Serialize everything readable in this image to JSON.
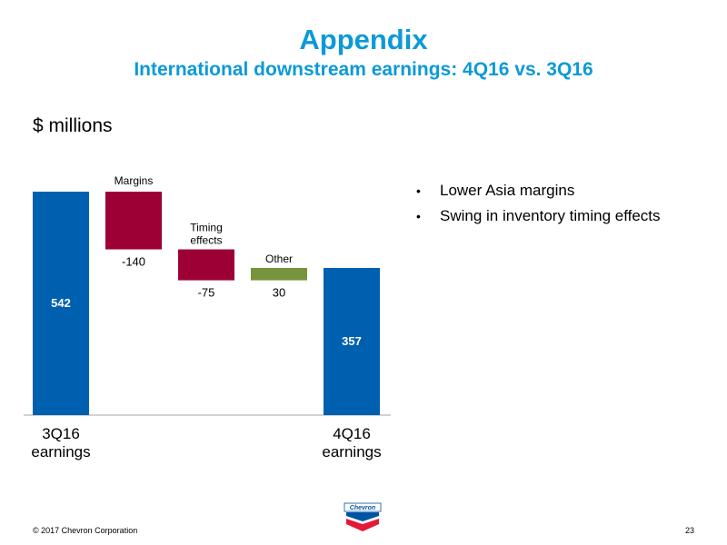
{
  "header": {
    "title": "Appendix",
    "subtitle": "International downstream earnings: 4Q16 vs. 3Q16"
  },
  "unit_label": "$ millions",
  "bullets": [
    "Lower Asia margins",
    "Swing in inventory timing effects"
  ],
  "footer": {
    "copyright": "© 2017 Chevron Corporation",
    "page_number": "23"
  },
  "logo": {
    "wordmark": "Chevron",
    "icon": "chevron-logo-icon"
  },
  "colors": {
    "title": "#0b9ad6",
    "total_bar": "#0060b0",
    "negative_bar": "#9c0034",
    "positive_bar": "#77933c",
    "logo_blue": "#0054a4",
    "logo_red": "#e31937"
  },
  "chart_data": {
    "type": "bar",
    "subtype": "waterfall",
    "title": "",
    "ylabel": "$ millions",
    "grid": false,
    "legend": "none",
    "steps": [
      {
        "label_lines": [
          "3Q16",
          "earnings"
        ],
        "value": 542,
        "kind": "total",
        "value_label": "542"
      },
      {
        "label_lines": [
          "Margins"
        ],
        "value": -140,
        "kind": "delta",
        "value_label": "-140"
      },
      {
        "label_lines": [
          "Timing",
          "effects"
        ],
        "value": -75,
        "kind": "delta",
        "value_label": "-75"
      },
      {
        "label_lines": [
          "Other"
        ],
        "value": 30,
        "kind": "delta",
        "value_label": "30"
      },
      {
        "label_lines": [
          "4Q16",
          "earnings"
        ],
        "value": 357,
        "kind": "total",
        "value_label": "357"
      }
    ]
  }
}
